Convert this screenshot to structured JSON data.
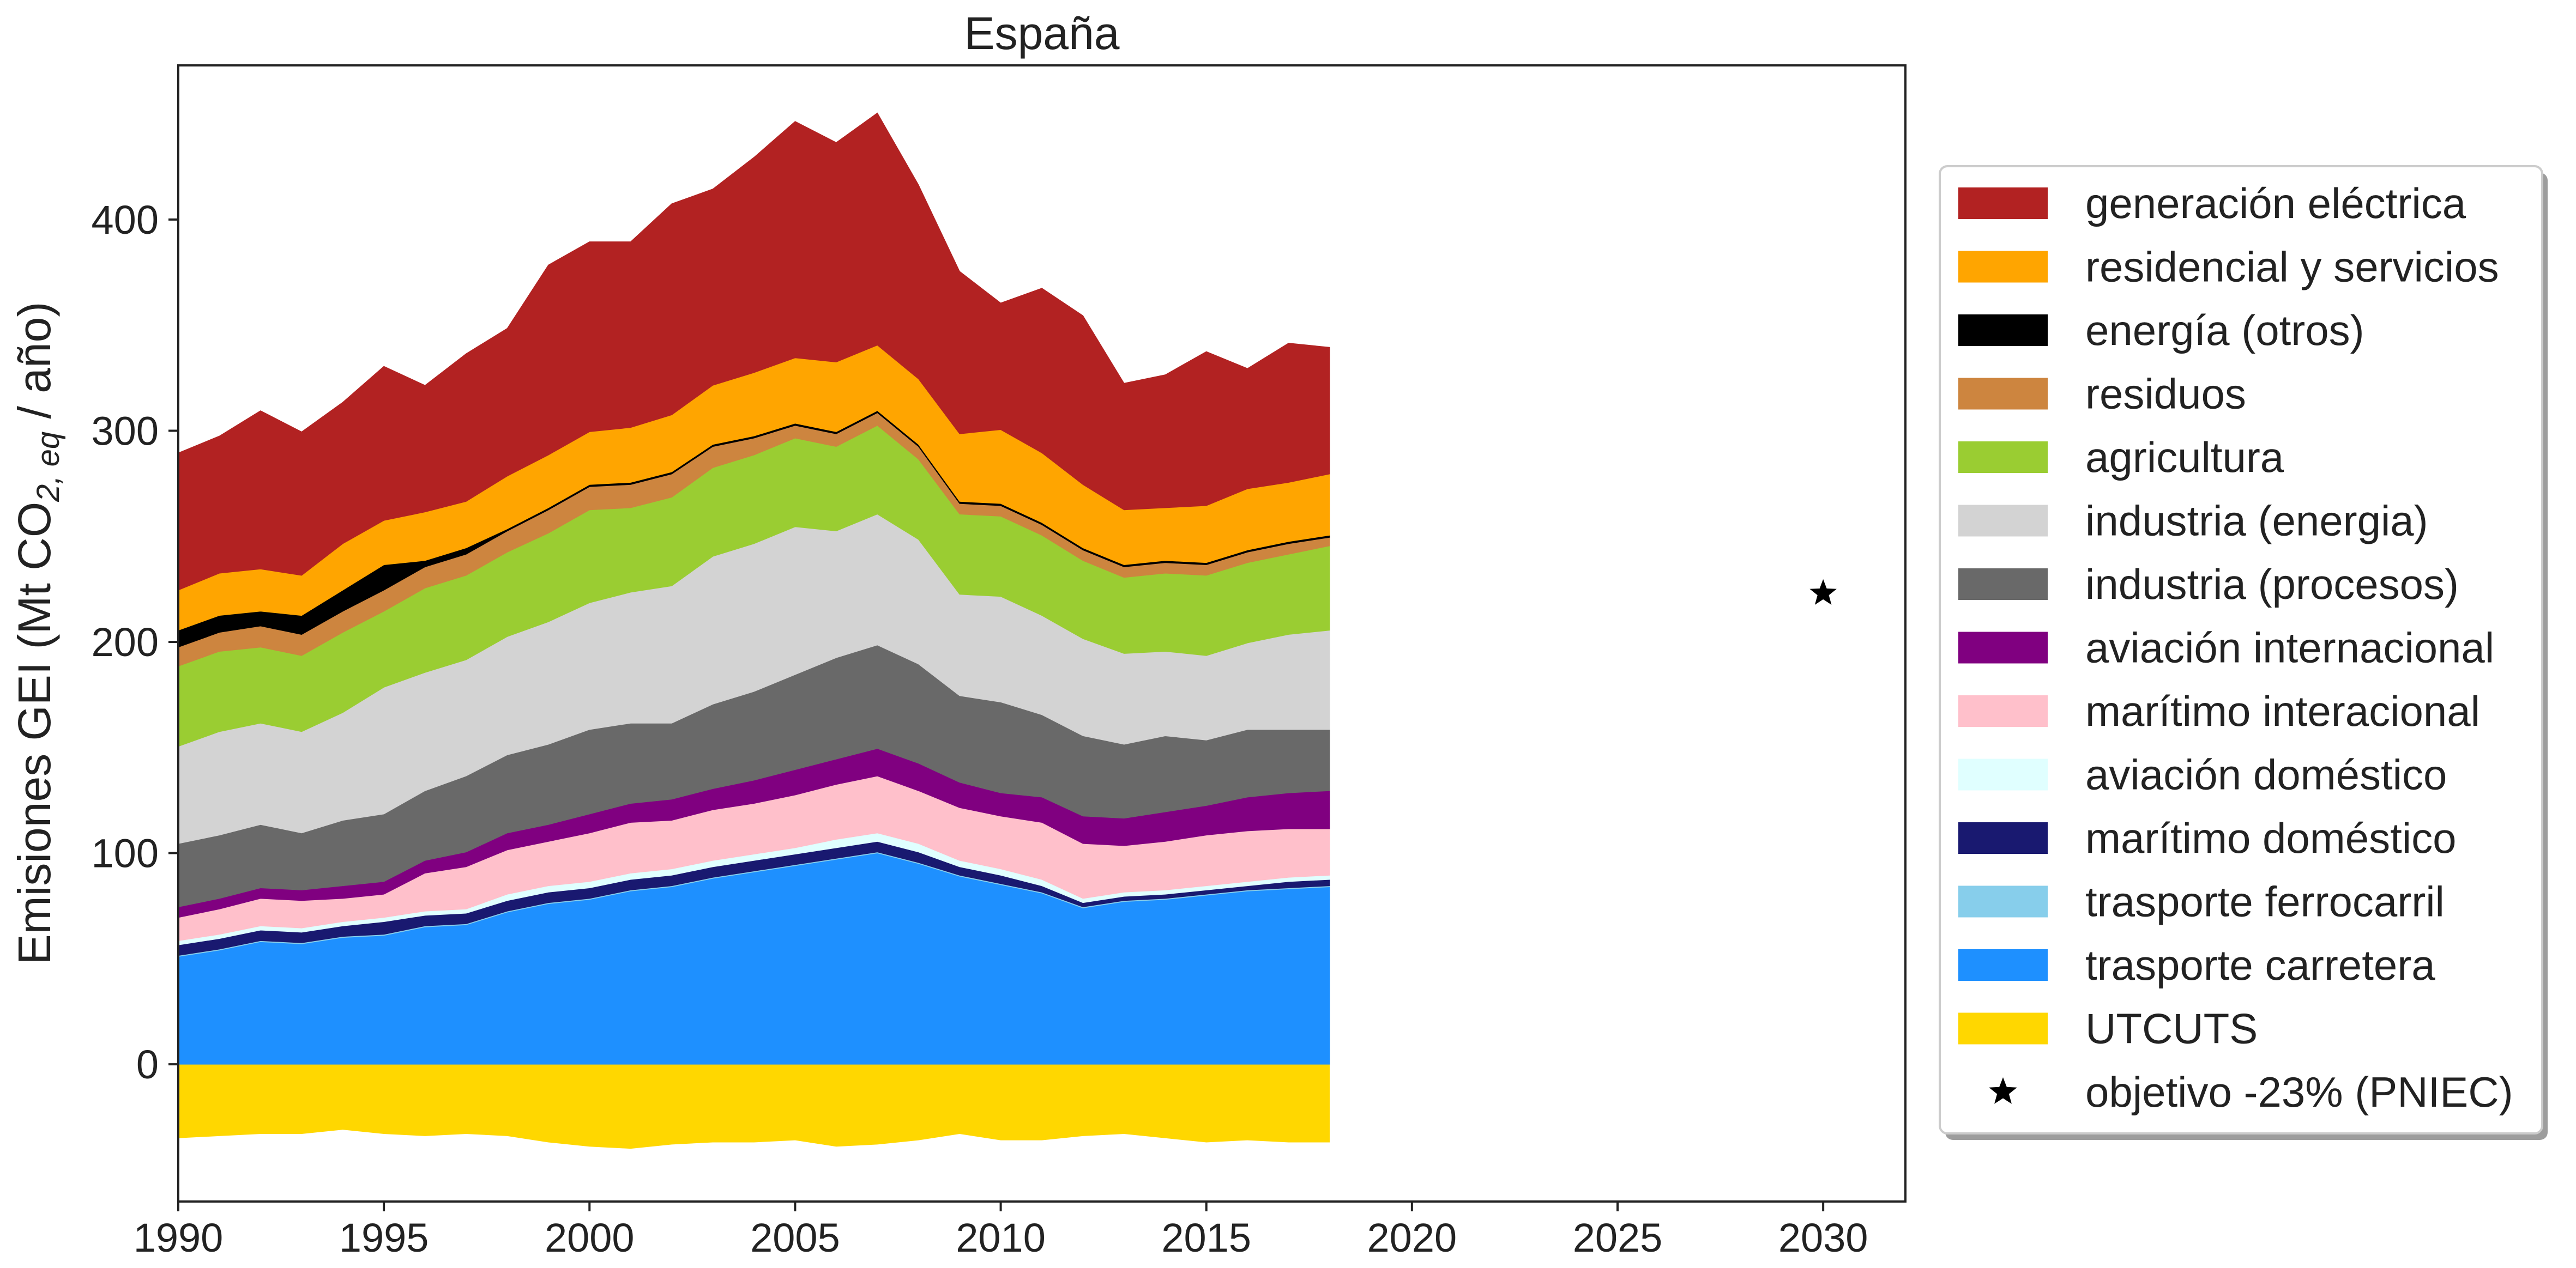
{
  "chart_data": {
    "type": "area",
    "title": "España",
    "ylabel": {
      "prefix": "Emisiones GEI (Mt CO",
      "sub": "2, eq",
      "suffix": " / año)"
    },
    "xlabel": "",
    "xlim": [
      1990,
      2032
    ],
    "ylim": [
      -65,
      473
    ],
    "xticks": [
      1990,
      1995,
      2000,
      2005,
      2010,
      2015,
      2020,
      2025,
      2030
    ],
    "yticks": [
      0,
      100,
      200,
      300,
      400
    ],
    "legend_position": "right",
    "x": [
      1990,
      1991,
      1992,
      1993,
      1994,
      1995,
      1996,
      1997,
      1998,
      1999,
      2000,
      2001,
      2002,
      2003,
      2004,
      2005,
      2006,
      2007,
      2008,
      2009,
      2010,
      2011,
      2012,
      2013,
      2014,
      2015,
      2016,
      2017,
      2018
    ],
    "series": [
      {
        "name": "trasporte carretera",
        "color": "#1e90ff",
        "values": [
          51,
          54,
          58,
          57,
          60,
          61,
          65,
          66,
          72,
          76,
          78,
          82,
          84,
          88,
          91,
          94,
          97,
          100,
          95,
          89,
          85,
          81,
          74,
          77,
          78,
          80,
          82,
          83,
          84
        ]
      },
      {
        "name": "trasporte ferrocarril",
        "color": "#87ceeb",
        "values": [
          0.5,
          0.5,
          0.5,
          0.5,
          0.5,
          0.5,
          0.5,
          0.5,
          0.5,
          0.5,
          0.5,
          0.5,
          0.5,
          0.5,
          0.5,
          0.5,
          0.5,
          0.5,
          0.5,
          0.5,
          0.5,
          0.5,
          0.5,
          0.5,
          0.5,
          0.5,
          0.5,
          0.5,
          0.5
        ]
      },
      {
        "name": "marítimo doméstico",
        "color": "#191970",
        "values": [
          5,
          5,
          5,
          5,
          5,
          6,
          5,
          5,
          5,
          5,
          5,
          5,
          5,
          5,
          5,
          5,
          5,
          5,
          5,
          4,
          4,
          3,
          2,
          2,
          2,
          2,
          2,
          3,
          3
        ]
      },
      {
        "name": "aviación doméstico",
        "color": "#e0ffff",
        "values": [
          2,
          2,
          2,
          2,
          2,
          2,
          2,
          2,
          3,
          3,
          3,
          3,
          3,
          3,
          3,
          3,
          4,
          4,
          4,
          3,
          3,
          3,
          2,
          2,
          2,
          2,
          2,
          2,
          2
        ]
      },
      {
        "name": "marítimo interacional",
        "color": "#ffc0cb",
        "values": [
          11,
          12,
          13,
          13,
          11,
          11,
          18,
          20,
          21,
          21,
          23,
          24,
          23,
          24,
          24,
          25,
          26,
          27,
          25,
          25,
          25,
          27,
          26,
          22,
          23,
          24,
          24,
          23,
          22
        ]
      },
      {
        "name": "aviación internacional",
        "color": "#800080",
        "values": [
          5,
          5,
          5,
          5,
          6,
          6,
          6,
          7,
          8,
          8,
          9,
          9,
          10,
          10,
          11,
          12,
          12,
          13,
          13,
          12,
          11,
          12,
          13,
          13,
          14,
          14,
          16,
          17,
          18
        ]
      },
      {
        "name": "industria (procesos)",
        "color": "#696969",
        "values": [
          30,
          30,
          30,
          27,
          31,
          32,
          33,
          36,
          37,
          38,
          40,
          38,
          36,
          40,
          42,
          45,
          48,
          49,
          47,
          41,
          43,
          39,
          38,
          35,
          36,
          31,
          32,
          30,
          29
        ]
      },
      {
        "name": "industria (energia)",
        "color": "#d3d3d3",
        "values": [
          46,
          49,
          48,
          48,
          51,
          60,
          56,
          55,
          56,
          58,
          60,
          62,
          65,
          70,
          70,
          70,
          60,
          62,
          59,
          48,
          50,
          47,
          46,
          43,
          40,
          40,
          41,
          45,
          47
        ]
      },
      {
        "name": "agricultura",
        "color": "#9acd32",
        "values": [
          38,
          38,
          36,
          36,
          38,
          36,
          40,
          40,
          40,
          42,
          44,
          40,
          42,
          42,
          42,
          42,
          40,
          42,
          38,
          38,
          38,
          38,
          37,
          36,
          37,
          38,
          38,
          38,
          40
        ]
      },
      {
        "name": "residuos",
        "color": "#cd853f",
        "values": [
          9,
          9,
          10,
          10,
          10,
          10,
          10,
          10,
          10,
          11,
          11,
          11,
          11,
          10,
          8,
          6,
          6,
          6,
          6,
          5,
          5,
          5,
          5,
          5,
          5,
          5,
          5,
          5,
          4
        ]
      },
      {
        "name": "energía (otros)",
        "color": "#000000",
        "values": [
          8,
          8,
          7,
          9,
          10,
          12,
          3,
          3,
          1,
          1,
          1,
          1,
          1,
          1,
          1,
          1,
          1,
          1,
          1,
          1,
          1,
          1,
          1,
          1,
          1,
          1,
          1,
          1,
          1
        ]
      },
      {
        "name": "residencial y servicios",
        "color": "#ffa500",
        "values": [
          19,
          20,
          20,
          19,
          22,
          21,
          23,
          22,
          25,
          25,
          25,
          26,
          27,
          28,
          30,
          31,
          33,
          31,
          31,
          32,
          35,
          33,
          30,
          26,
          25,
          27,
          29,
          28,
          29
        ]
      },
      {
        "name": "generación eléctrica",
        "color": "#b22222",
        "values": [
          65,
          65,
          75,
          68,
          67,
          73,
          60,
          70,
          70,
          90,
          90,
          88,
          100,
          93,
          102,
          112,
          104,
          110,
          92,
          77,
          60,
          78,
          80,
          60,
          63,
          73,
          57,
          66,
          60
        ]
      }
    ],
    "utcuts": {
      "name": "UTCUTS",
      "color": "#ffd700",
      "values": [
        -35,
        -34,
        -33,
        -33,
        -31,
        -33,
        -34,
        -33,
        -34,
        -37,
        -39,
        -40,
        -38,
        -37,
        -37,
        -36,
        -39,
        -38,
        -36,
        -33,
        -36,
        -36,
        -34,
        -33,
        -35,
        -37,
        -36,
        -37,
        -37
      ]
    },
    "target": {
      "name": "objetivo -23% (PNIEC)",
      "x": 2030,
      "y": 223,
      "color": "#000000"
    },
    "legend_order": [
      "generación eléctrica",
      "residencial y servicios",
      "energía (otros)",
      "residuos",
      "agricultura",
      "industria (energia)",
      "industria (procesos)",
      "aviación internacional",
      "marítimo interacional",
      "aviación doméstico",
      "marítimo doméstico",
      "trasporte ferrocarril",
      "trasporte carretera",
      "UTCUTS",
      "objetivo -23% (PNIEC)"
    ]
  }
}
